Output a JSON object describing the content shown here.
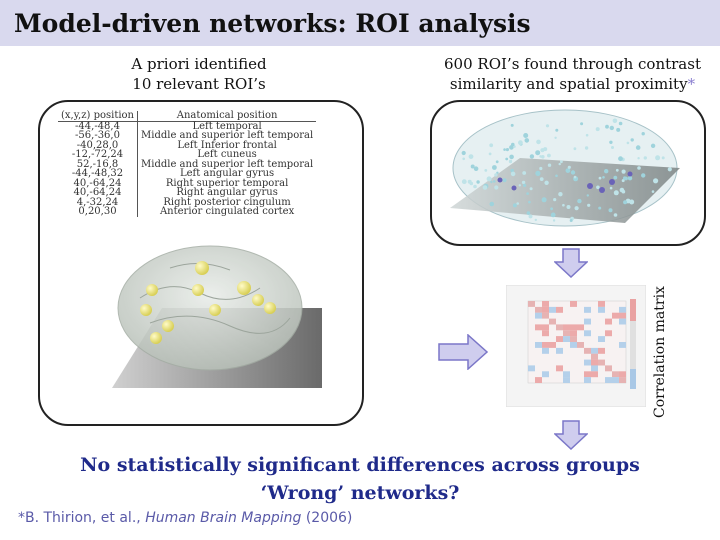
{
  "slide": {
    "title": "Model-driven networks: ROI analysis",
    "left_caption_line1": "A priori identified",
    "left_caption_line2": "10 relevant ROI’s",
    "right_caption_line1": "600 ROI’s found through contrast",
    "right_caption_line2": "similarity and spatial proximity",
    "right_caption_mark": "*",
    "side_label": "Correlation matrix",
    "conclusion_line1": "No statistically significant differences across groups",
    "conclusion_line2": "‘Wrong’ networks?",
    "citation_prefix": "*B. Thirion, et al., ",
    "citation_journal": "Human Brain Mapping",
    "citation_suffix": " (2006)"
  },
  "roi_table": {
    "headers": [
      "(x,y,z) position",
      "Anatomical position"
    ],
    "rows": [
      [
        "-44,-48,4",
        "Left temporal"
      ],
      [
        "-56,-36,0",
        "Middle and superior left temporal"
      ],
      [
        "-40,28,0",
        "Left Inferior frontal"
      ],
      [
        "-12,-72,24",
        "Left cuneus"
      ],
      [
        "52,-16,8",
        "Middle and superior left temporal"
      ],
      [
        "-44,-48,32",
        "Left angular gyrus"
      ],
      [
        "40,-64,24",
        "Right superior temporal"
      ],
      [
        "40,-64,24",
        "Right angular gyrus"
      ],
      [
        "4,-32,24",
        "Right posterior cingulum"
      ],
      [
        "0,20,30",
        "Anterior cingulated cortex"
      ]
    ]
  },
  "colors": {
    "title_bar": "#d9d9ee",
    "conclusion_text": "#1f2a8a",
    "citation_text": "#5a5aa8",
    "arrow_fill": "#cfcdee",
    "arrow_stroke": "#7b77c8",
    "roi_sphere": "#e8e070"
  }
}
